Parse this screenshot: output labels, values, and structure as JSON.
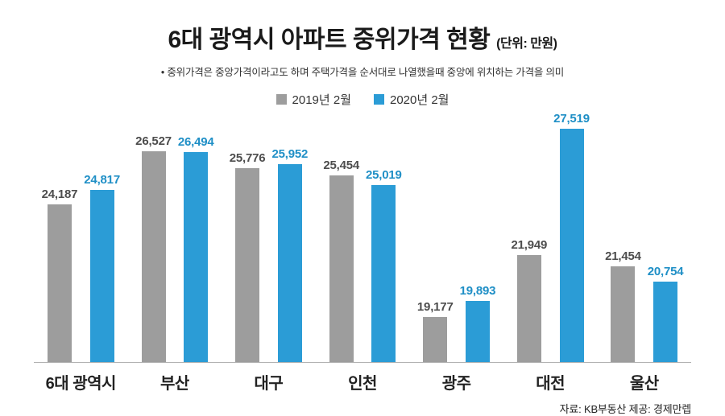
{
  "title": "6대 광역시 아파트 중위가격 현황",
  "title_unit": "(단위: 만원)",
  "subtitle": "• 중위가격은 중앙가격이라고도 하며 주택가격을 순서대로 나열했을때 중앙에 위치하는 가격을 의미",
  "source": "자료: KB부동산  제공: 경제만렙",
  "chart_data": {
    "type": "bar",
    "title": "6대 광역시 아파트 중위가격 현황",
    "unit": "만원",
    "xlabel": "",
    "ylabel": "",
    "legend_position": "top",
    "grid": false,
    "categories": [
      "6대 광역시",
      "부산",
      "대구",
      "인천",
      "광주",
      "대전",
      "울산"
    ],
    "series": [
      {
        "name": "2019년 2월",
        "color": "#9d9d9d",
        "label_color": "#4d4d4d",
        "values": [
          24187,
          26527,
          25776,
          25454,
          19177,
          21949,
          21454
        ]
      },
      {
        "name": "2020년 2월",
        "color": "#2b9cd6",
        "label_color": "#1f8fc6",
        "values": [
          24817,
          26494,
          25952,
          25019,
          19893,
          27519,
          20754
        ]
      }
    ],
    "ylim": [
      17200,
      27600
    ]
  }
}
